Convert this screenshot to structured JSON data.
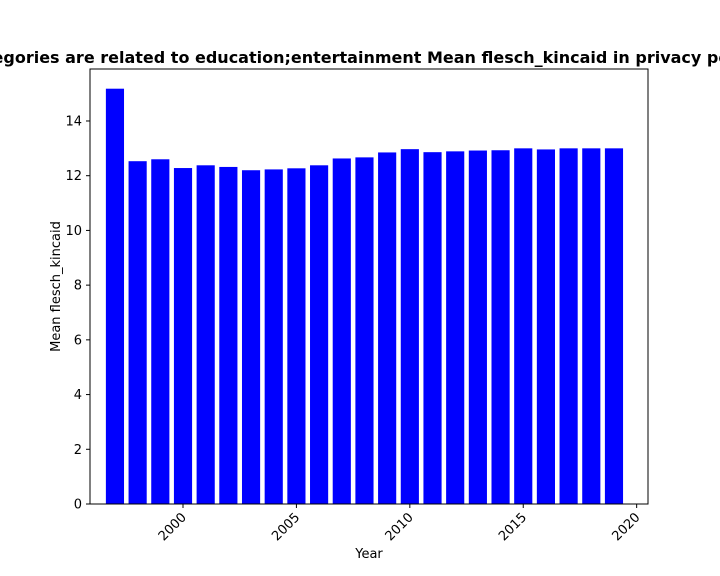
{
  "chart_data": {
    "type": "bar",
    "title": "Categories are related to education;entertainment Mean flesch_kincaid in privacy policies",
    "xlabel": "Year",
    "ylabel": "Mean flesch_kincaid",
    "x": [
      1997,
      1998,
      1999,
      2000,
      2001,
      2002,
      2003,
      2004,
      2005,
      2006,
      2007,
      2008,
      2009,
      2010,
      2011,
      2012,
      2013,
      2014,
      2015,
      2016,
      2017,
      2018,
      2019
    ],
    "values": [
      15.18,
      12.53,
      12.6,
      12.28,
      12.38,
      12.32,
      12.2,
      12.23,
      12.27,
      12.38,
      12.63,
      12.67,
      12.85,
      12.97,
      12.86,
      12.89,
      12.92,
      12.93,
      13.0,
      12.96,
      13.0,
      13.0,
      13.0
    ],
    "xlim": [
      1995.9,
      2020.5
    ],
    "ylim": [
      0,
      15.9
    ],
    "xticks": [
      2000,
      2005,
      2010,
      2015,
      2020
    ],
    "yticks": [
      0,
      2,
      4,
      6,
      8,
      10,
      12,
      14
    ],
    "grid": false,
    "bar_color": "#0000ff"
  }
}
